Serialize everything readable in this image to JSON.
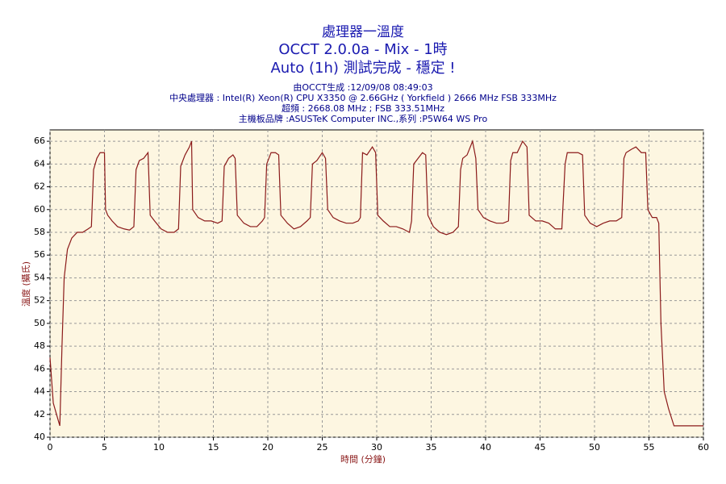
{
  "chart_data": {
    "type": "line",
    "title": "處理器一溫度",
    "subtitle": [
      "OCCT 2.0.0a - Mix - 1時",
      "Auto (1h) 測試完成 - 穩定 !"
    ],
    "info": [
      "由OCCT生成 :12/09/08 08:49:03",
      "中央處理器 : Intel(R) Xeon(R) CPU X3350 @ 2.66GHz ( Yorkfield ) 2666 MHz FSB 333MHz",
      "超頻 : 2668.08 MHz ; FSB 333.51MHz",
      "主機板品牌 :ASUSTeK Computer INC.,系列 :P5W64 WS Pro"
    ],
    "xlabel": "時間 (分鐘)",
    "ylabel": "溫度 (攝氏)",
    "x": [
      0,
      0.3,
      0.6,
      0.9,
      1.1,
      1.3,
      1.6,
      2.0,
      2.5,
      3.0,
      3.5,
      3.8,
      4.0,
      4.3,
      4.6,
      5.0,
      5.1,
      5.3,
      5.7,
      6.2,
      6.8,
      7.3,
      7.7,
      7.9,
      8.2,
      8.6,
      9.0,
      9.2,
      9.6,
      10.2,
      10.8,
      11.4,
      11.8,
      12.0,
      12.4,
      12.8,
      13.0,
      13.1,
      13.6,
      14.2,
      14.8,
      15.4,
      15.8,
      16.0,
      16.4,
      16.8,
      17.0,
      17.2,
      17.8,
      18.4,
      19.0,
      19.5,
      19.7,
      19.9,
      20.3,
      20.7,
      21.0,
      21.2,
      21.8,
      22.4,
      23.0,
      23.6,
      23.9,
      24.1,
      24.5,
      25.0,
      25.3,
      25.5,
      26.0,
      26.6,
      27.2,
      27.8,
      28.3,
      28.5,
      28.7,
      29.1,
      29.6,
      29.9,
      30.1,
      30.6,
      31.2,
      31.8,
      32.4,
      33.0,
      33.2,
      33.4,
      33.8,
      34.2,
      34.5,
      34.7,
      35.2,
      35.8,
      36.4,
      37.0,
      37.5,
      37.7,
      37.9,
      38.3,
      38.8,
      39.1,
      39.3,
      39.8,
      40.4,
      41.0,
      41.6,
      42.1,
      42.3,
      42.5,
      42.9,
      43.4,
      43.8,
      44.0,
      44.6,
      45.2,
      45.8,
      46.4,
      47.0,
      47.3,
      47.5,
      48.0,
      48.5,
      48.9,
      49.1,
      49.6,
      50.2,
      50.8,
      51.4,
      52.0,
      52.5,
      52.7,
      52.9,
      53.4,
      53.8,
      54.3,
      54.7,
      54.9,
      55.3,
      55.7,
      55.9,
      56.1,
      56.4,
      56.8,
      57.3,
      58,
      59,
      60
    ],
    "values": [
      47,
      43,
      42,
      41,
      48,
      54,
      56.5,
      57.5,
      58,
      58,
      58.3,
      58.5,
      63.5,
      64.5,
      65,
      65,
      60,
      59.5,
      59,
      58.5,
      58.3,
      58.2,
      58.5,
      63.5,
      64.3,
      64.5,
      65,
      59.5,
      59,
      58.3,
      58,
      58,
      58.3,
      63.8,
      64.8,
      65.5,
      66,
      60,
      59.3,
      59,
      59,
      58.8,
      59,
      63.8,
      64.5,
      64.8,
      64.5,
      59.5,
      58.8,
      58.5,
      58.5,
      59,
      59.3,
      64,
      65,
      65,
      64.8,
      59.5,
      58.8,
      58.3,
      58.5,
      59,
      59.3,
      64,
      64.3,
      65,
      64.5,
      60,
      59.3,
      59,
      58.8,
      58.8,
      59,
      59.3,
      65,
      64.8,
      65.5,
      65,
      59.5,
      59,
      58.5,
      58.5,
      58.3,
      58,
      59,
      64,
      64.5,
      65,
      64.8,
      59.5,
      58.5,
      58,
      57.8,
      58,
      58.5,
      63.5,
      64.5,
      64.8,
      66,
      64.5,
      60,
      59.3,
      59,
      58.8,
      58.8,
      59,
      64.3,
      65,
      65,
      66,
      65.5,
      59.5,
      59,
      59,
      58.8,
      58.3,
      58.3,
      64,
      65,
      65,
      65,
      64.8,
      59.5,
      58.8,
      58.5,
      58.8,
      59,
      59,
      59.3,
      64.5,
      65,
      65.3,
      65.5,
      65,
      65,
      60,
      59.3,
      59.3,
      58.8,
      50,
      44,
      42.5,
      41,
      41,
      41,
      41
    ],
    "color": "#8b1a1a",
    "xlim": [
      0,
      60
    ],
    "xticks": [
      0,
      5,
      10,
      15,
      20,
      25,
      30,
      35,
      40,
      45,
      50,
      55,
      60
    ],
    "ylim": [
      40,
      67
    ],
    "yticks": [
      40,
      42,
      44,
      46,
      48,
      50,
      52,
      54,
      56,
      58,
      60,
      62,
      64,
      66
    ],
    "grid": true
  }
}
